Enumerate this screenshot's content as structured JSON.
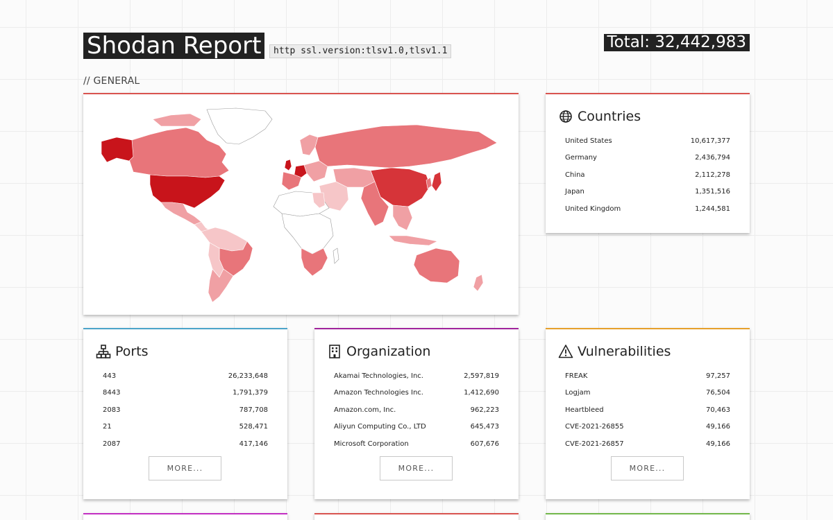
{
  "header": {
    "title": "Shodan Report",
    "query": "http ssl.version:tlsv1.0,tlsv1.1",
    "total": "Total: 32,442,983"
  },
  "section": {
    "label": "// GENERAL"
  },
  "countries": {
    "title": "Countries",
    "icon": "globe-icon",
    "rows": [
      {
        "name": "United States",
        "value": "10,617,377"
      },
      {
        "name": "Germany",
        "value": "2,436,794"
      },
      {
        "name": "China",
        "value": "2,112,278"
      },
      {
        "name": "Japan",
        "value": "1,351,516"
      },
      {
        "name": "United Kingdom",
        "value": "1,244,581"
      }
    ]
  },
  "ports": {
    "title": "Ports",
    "icon": "network-icon",
    "more_label": "MORE...",
    "rows": [
      {
        "name": "443",
        "value": "26,233,648"
      },
      {
        "name": "8443",
        "value": "1,791,379"
      },
      {
        "name": "2083",
        "value": "787,708"
      },
      {
        "name": "21",
        "value": "528,471"
      },
      {
        "name": "2087",
        "value": "417,146"
      }
    ]
  },
  "organization": {
    "title": "Organization",
    "icon": "building-icon",
    "more_label": "MORE...",
    "rows": [
      {
        "name": "Akamai Technologies, Inc.",
        "value": "2,597,819"
      },
      {
        "name": "Amazon Technologies Inc.",
        "value": "1,412,690"
      },
      {
        "name": "Amazon.com, Inc.",
        "value": "962,223"
      },
      {
        "name": "Aliyun Computing Co., LTD",
        "value": "645,473"
      },
      {
        "name": "Microsoft Corporation",
        "value": "607,676"
      }
    ]
  },
  "vulnerabilities": {
    "title": "Vulnerabilities",
    "icon": "warning-icon",
    "more_label": "MORE...",
    "rows": [
      {
        "name": "FREAK",
        "value": "97,257"
      },
      {
        "name": "Logjam",
        "value": "76,504"
      },
      {
        "name": "Heartbleed",
        "value": "70,463"
      },
      {
        "name": "CVE-2021-26855",
        "value": "49,166"
      },
      {
        "name": "CVE-2021-26857",
        "value": "49,166"
      }
    ]
  },
  "colors": {
    "dark": "#222222",
    "map_high": "#c8141b",
    "map_mid": "#e8757a",
    "map_low": "#f6c6c8",
    "accent_red": "#d9534f",
    "accent_blue": "#4aa3c9",
    "accent_purple": "#a0239c",
    "accent_orange": "#e6a02a"
  }
}
